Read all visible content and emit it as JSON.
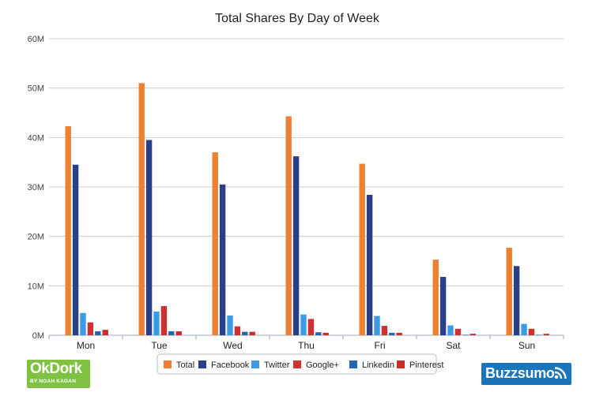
{
  "chart_data": {
    "type": "bar",
    "title": "Total Shares By Day of Week",
    "xlabel": "",
    "ylabel": "",
    "ylim": [
      0,
      60000000
    ],
    "yticks": [
      0,
      10000000,
      20000000,
      30000000,
      40000000,
      50000000,
      60000000
    ],
    "ytick_labels": [
      "0M",
      "10M",
      "20M",
      "30M",
      "40M",
      "50M",
      "60M"
    ],
    "grid": true,
    "legend_position": "bottom",
    "categories": [
      "Mon",
      "Tue",
      "Wed",
      "Thu",
      "Fri",
      "Sat",
      "Sun"
    ],
    "series": [
      {
        "name": "Total",
        "color": "#ed8132",
        "values": [
          42300000,
          51000000,
          37000000,
          44300000,
          34700000,
          15300000,
          17700000
        ]
      },
      {
        "name": "Facebook",
        "color": "#2b3f86",
        "values": [
          34500000,
          39500000,
          30500000,
          36200000,
          28400000,
          11800000,
          14000000
        ]
      },
      {
        "name": "Twitter",
        "color": "#3c9be6",
        "values": [
          4500000,
          4800000,
          4000000,
          4200000,
          3900000,
          2000000,
          2300000
        ]
      },
      {
        "name": "Google+",
        "color": "#d0302f",
        "values": [
          2600000,
          5900000,
          1800000,
          3300000,
          1900000,
          1300000,
          1300000
        ]
      },
      {
        "name": "Linkedin",
        "color": "#2566b0",
        "values": [
          800000,
          800000,
          700000,
          600000,
          500000,
          100000,
          100000
        ]
      },
      {
        "name": "Pinterest",
        "color": "#c92d2c",
        "values": [
          1100000,
          800000,
          700000,
          500000,
          500000,
          300000,
          300000
        ]
      }
    ]
  },
  "logos": {
    "left_main": "OkDork",
    "left_sub": "BY NOAH KAGAN",
    "left_color": "#7fc241",
    "right_main": "Buzzsumo",
    "right_color": "#1a75bb",
    "right_icon": "signal-icon"
  }
}
